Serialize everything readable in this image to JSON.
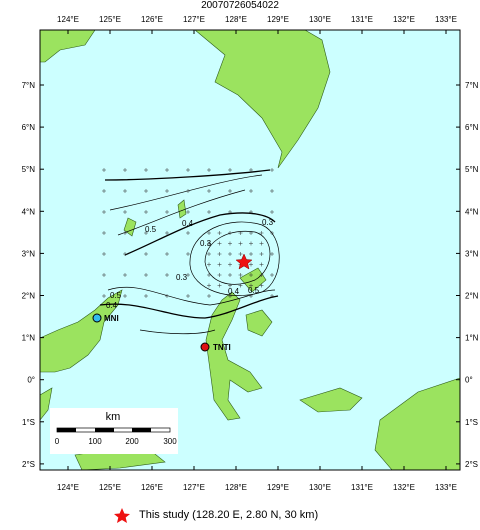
{
  "title": "20070726054022",
  "lon_ticks": [
    {
      "value": 124,
      "label": "124°E"
    },
    {
      "value": 125,
      "label": "125°E"
    },
    {
      "value": 126,
      "label": "126°E"
    },
    {
      "value": 127,
      "label": "127°E"
    },
    {
      "value": 128,
      "label": "128°E"
    },
    {
      "value": 129,
      "label": "129°E"
    },
    {
      "value": 130,
      "label": "130°E"
    },
    {
      "value": 131,
      "label": "131°E"
    },
    {
      "value": 132,
      "label": "132°E"
    },
    {
      "value": 133,
      "label": "133°E"
    }
  ],
  "lat_ticks": [
    {
      "value": 7,
      "label": "7°N"
    },
    {
      "value": 6,
      "label": "6°N"
    },
    {
      "value": 5,
      "label": "5°N"
    },
    {
      "value": 4,
      "label": "4°N"
    },
    {
      "value": 3,
      "label": "3°N"
    },
    {
      "value": 2,
      "label": "2°N"
    },
    {
      "value": 1,
      "label": "1°N"
    },
    {
      "value": 0,
      "label": "0°"
    },
    {
      "value": -1,
      "label": "1°S"
    },
    {
      "value": -2,
      "label": "2°S"
    }
  ],
  "stations": [
    "MNI",
    "TNTI"
  ],
  "contour_labels": [
    "0.5",
    "0.4",
    "0.3",
    "0.3",
    "0.4",
    "0.5",
    "0.4",
    "0.3",
    "0.5"
  ],
  "scale_bar": {
    "unit": "km",
    "ticks": [
      "0",
      "100",
      "200",
      "300"
    ]
  },
  "legend": "This study (128.20 E, 2.80 N, 30 km)"
}
